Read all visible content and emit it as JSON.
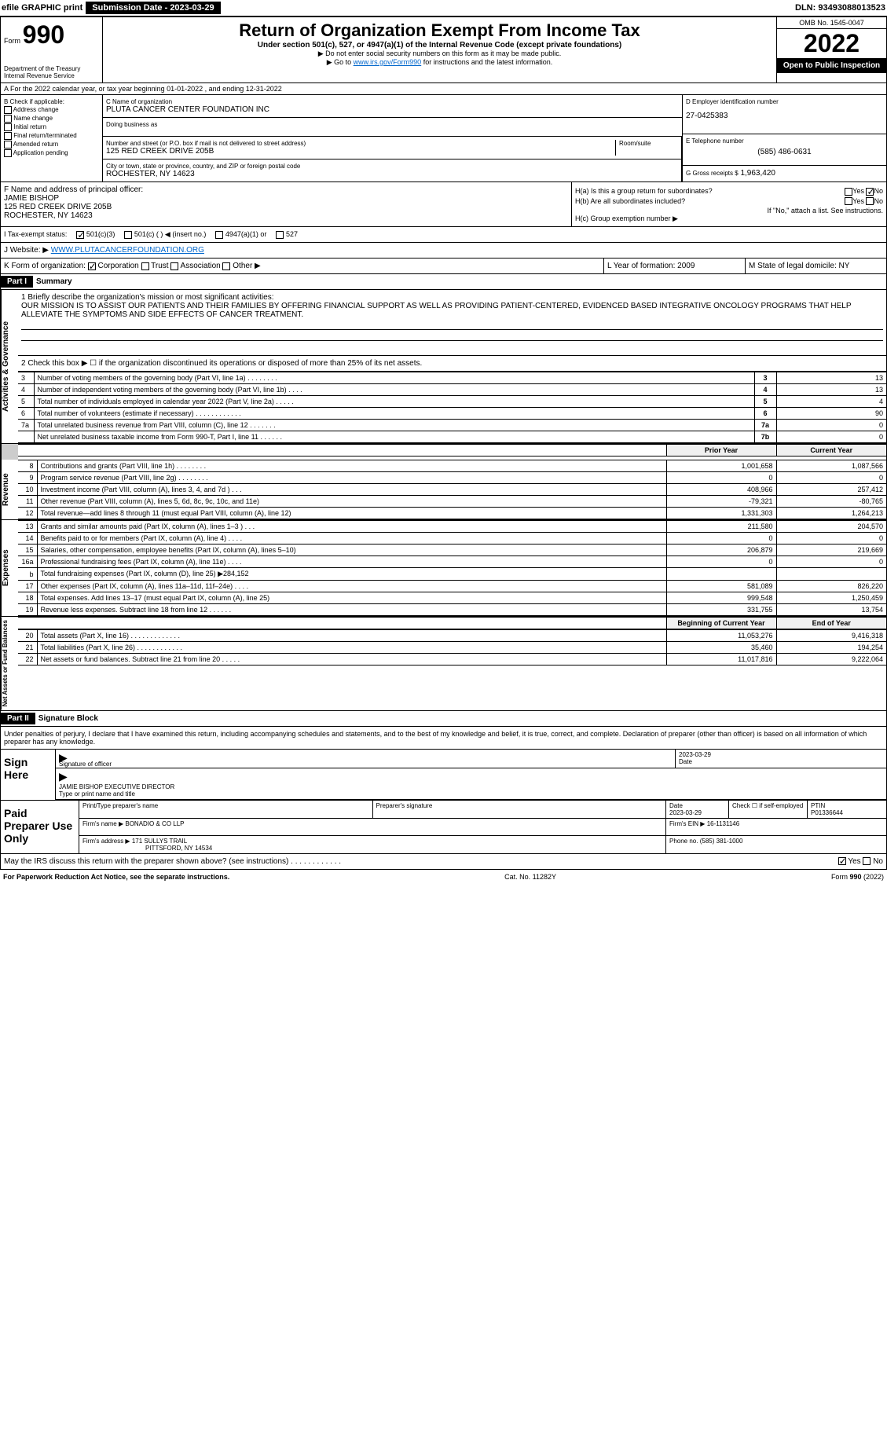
{
  "topbar": {
    "efile": "efile GRAPHIC print",
    "submission_label": "Submission Date - 2023-03-29",
    "dln": "DLN: 93493088013523"
  },
  "header": {
    "form_prefix": "Form",
    "form_number": "990",
    "dept": "Department of the Treasury",
    "irs": "Internal Revenue Service",
    "title": "Return of Organization Exempt From Income Tax",
    "subtitle": "Under section 501(c), 527, or 4947(a)(1) of the Internal Revenue Code (except private foundations)",
    "ssn_note": "▶ Do not enter social security numbers on this form as it may be made public.",
    "goto": "▶ Go to ",
    "goto_link": "www.irs.gov/Form990",
    "goto_suffix": " for instructions and the latest information.",
    "omb": "OMB No. 1545-0047",
    "year": "2022",
    "public": "Open to Public Inspection"
  },
  "rowA": "A For the 2022 calendar year, or tax year beginning 01-01-2022    , and ending 12-31-2022",
  "checkB": {
    "label": "B Check if applicable:",
    "opts": [
      "Address change",
      "Name change",
      "Initial return",
      "Final return/terminated",
      "Amended return",
      "Application pending"
    ]
  },
  "orgC": {
    "name_label": "C Name of organization",
    "name": "PLUTA CANCER CENTER FOUNDATION INC",
    "dba_label": "Doing business as",
    "street_label": "Number and street (or P.O. box if mail is not delivered to street address)",
    "street": "125 RED CREEK DRIVE 205B",
    "room_label": "Room/suite",
    "city_label": "City or town, state or province, country, and ZIP or foreign postal code",
    "city": "ROCHESTER, NY  14623"
  },
  "colD": {
    "ein_label": "D Employer identification number",
    "ein": "27-0425383",
    "phone_label": "E Telephone number",
    "phone": "(585) 486-0631",
    "gross_label": "G Gross receipts $",
    "gross": "1,963,420"
  },
  "colF": {
    "label": "F  Name and address of principal officer:",
    "name": "JAMIE BISHOP",
    "addr1": "125 RED CREEK DRIVE 205B",
    "addr2": "ROCHESTER, NY  14623"
  },
  "colH": {
    "ha": "H(a)  Is this a group return for subordinates?",
    "ha_yes": "Yes",
    "ha_no": "No",
    "hb": "H(b)  Are all subordinates included?",
    "hb_note": "If \"No,\" attach a list. See instructions.",
    "hc": "H(c)  Group exemption number ▶"
  },
  "taxI": {
    "label": "I  Tax-exempt status:",
    "opt1": "501(c)(3)",
    "opt2": "501(c) (   ) ◀ (insert no.)",
    "opt3": "4947(a)(1) or",
    "opt4": "527"
  },
  "webJ": {
    "label": "J Website: ▶",
    "url": "WWW.PLUTACANCERFOUNDATION.ORG"
  },
  "rowK": {
    "label": "K Form of organization:",
    "opts": [
      "Corporation",
      "Trust",
      "Association",
      "Other ▶"
    ],
    "L": "L Year of formation: 2009",
    "M": "M State of legal domicile: NY"
  },
  "part1": {
    "header": "Part I",
    "title": "Summary",
    "mission_label": "1 Briefly describe the organization's mission or most significant activities:",
    "mission": "OUR MISSION IS TO ASSIST OUR PATIENTS AND THEIR FAMILIES BY OFFERING FINANCIAL SUPPORT AS WELL AS PROVIDING PATIENT-CENTERED, EVIDENCED BASED INTEGRATIVE ONCOLOGY PROGRAMS THAT HELP ALLEVIATE THE SYMPTOMS AND SIDE EFFECTS OF CANCER TREATMENT.",
    "line2": "2  Check this box ▶ ☐  if the organization discontinued its operations or disposed of more than 25% of its net assets.",
    "sides": {
      "gov": "Activities & Governance",
      "rev": "Revenue",
      "exp": "Expenses",
      "net": "Net Assets or Fund Balances"
    },
    "gov_rows": [
      {
        "n": "3",
        "label": "Number of voting members of the governing body (Part VI, line 1a)  .    .    .    .    .    .    .    .",
        "box": "3",
        "val": "13"
      },
      {
        "n": "4",
        "label": "Number of independent voting members of the governing body (Part VI, line 1b)  .    .    .    .",
        "box": "4",
        "val": "13"
      },
      {
        "n": "5",
        "label": "Total number of individuals employed in calendar year 2022 (Part V, line 2a)  .    .    .    .    .",
        "box": "5",
        "val": "4"
      },
      {
        "n": "6",
        "label": "Total number of volunteers (estimate if necessary)   .    .    .    .    .    .    .    .    .    .    .    .",
        "box": "6",
        "val": "90"
      },
      {
        "n": "7a",
        "label": "Total unrelated business revenue from Part VIII, column (C), line 12  .    .    .    .    .    .    .",
        "box": "7a",
        "val": "0"
      },
      {
        "n": "",
        "label": "Net unrelated business taxable income from Form 990-T, Part I, line 11   .    .    .    .    .    .",
        "box": "7b",
        "val": "0"
      }
    ],
    "year_headers": {
      "prior": "Prior Year",
      "current": "Current Year"
    },
    "rev_rows": [
      {
        "n": "8",
        "label": "Contributions and grants (Part VIII, line 1h)   .    .    .    .    .    .    .    .",
        "prior": "1,001,658",
        "current": "1,087,566"
      },
      {
        "n": "9",
        "label": "Program service revenue (Part VIII, line 2g)   .    .    .    .    .    .    .    .",
        "prior": "0",
        "current": "0"
      },
      {
        "n": "10",
        "label": "Investment income (Part VIII, column (A), lines 3, 4, and 7d )   .    .    .",
        "prior": "408,966",
        "current": "257,412"
      },
      {
        "n": "11",
        "label": "Other revenue (Part VIII, column (A), lines 5, 6d, 8c, 9c, 10c, and 11e)",
        "prior": "-79,321",
        "current": "-80,765"
      },
      {
        "n": "12",
        "label": "Total revenue—add lines 8 through 11 (must equal Part VIII, column (A), line 12)",
        "prior": "1,331,303",
        "current": "1,264,213"
      }
    ],
    "exp_rows": [
      {
        "n": "13",
        "label": "Grants and similar amounts paid (Part IX, column (A), lines 1–3 )  .    .    .",
        "prior": "211,580",
        "current": "204,570"
      },
      {
        "n": "14",
        "label": "Benefits paid to or for members (Part IX, column (A), line 4)  .    .    .    .",
        "prior": "0",
        "current": "0"
      },
      {
        "n": "15",
        "label": "Salaries, other compensation, employee benefits (Part IX, column (A), lines 5–10)",
        "prior": "206,879",
        "current": "219,669"
      },
      {
        "n": "16a",
        "label": "Professional fundraising fees (Part IX, column (A), line 11e)  .    .    .    .",
        "prior": "0",
        "current": "0"
      },
      {
        "n": "b",
        "label": "Total fundraising expenses (Part IX, column (D), line 25) ▶284,152",
        "prior": "",
        "current": "",
        "shaded": true
      },
      {
        "n": "17",
        "label": "Other expenses (Part IX, column (A), lines 11a–11d, 11f–24e)  .    .    .    .",
        "prior": "581,089",
        "current": "826,220"
      },
      {
        "n": "18",
        "label": "Total expenses. Add lines 13–17 (must equal Part IX, column (A), line 25)",
        "prior": "999,548",
        "current": "1,250,459"
      },
      {
        "n": "19",
        "label": "Revenue less expenses. Subtract line 18 from line 12  .    .    .    .    .    .",
        "prior": "331,755",
        "current": "13,754"
      }
    ],
    "net_headers": {
      "begin": "Beginning of Current Year",
      "end": "End of Year"
    },
    "net_rows": [
      {
        "n": "20",
        "label": "Total assets (Part X, line 16)  .    .    .    .    .    .    .    .    .    .    .    .    .",
        "prior": "11,053,276",
        "current": "9,416,318"
      },
      {
        "n": "21",
        "label": "Total liabilities (Part X, line 26)  .    .    .    .    .    .    .    .    .    .    .    .",
        "prior": "35,460",
        "current": "194,254"
      },
      {
        "n": "22",
        "label": "Net assets or fund balances. Subtract line 21 from line 20  .    .    .    .    .",
        "prior": "11,017,816",
        "current": "9,222,064"
      }
    ]
  },
  "part2": {
    "header": "Part II",
    "title": "Signature Block",
    "declaration": "Under penalties of perjury, I declare that I have examined this return, including accompanying schedules and statements, and to the best of my knowledge and belief, it is true, correct, and complete. Declaration of preparer (other than officer) is based on all information of which preparer has any knowledge.",
    "sign_here": "Sign Here",
    "sig_officer": "Signature of officer",
    "sig_date": "2023-03-29",
    "date_label": "Date",
    "officer_name": "JAMIE BISHOP EXECUTIVE DIRECTOR",
    "type_name": "Type or print name and title",
    "paid_prep": "Paid Preparer Use Only",
    "prep_name_label": "Print/Type preparer's name",
    "prep_sig_label": "Preparer's signature",
    "prep_date_label": "Date",
    "prep_date": "2023-03-29",
    "check_self": "Check ☐ if self-employed",
    "ptin_label": "PTIN",
    "ptin": "P01336644",
    "firm_name_label": "Firm's name    ▶",
    "firm_name": "BONADIO & CO LLP",
    "firm_ein_label": "Firm's EIN ▶",
    "firm_ein": "16-1131146",
    "firm_addr_label": "Firm's address ▶",
    "firm_addr1": "171 SULLYS TRAIL",
    "firm_addr2": "PITTSFORD, NY  14534",
    "firm_phone_label": "Phone no.",
    "firm_phone": "(585) 381-1000",
    "discuss": "May the IRS discuss this return with the preparer shown above? (see instructions)   .    .    .    .    .    .    .    .    .    .    .    .",
    "discuss_yes": "Yes",
    "discuss_no": "No"
  },
  "footer": {
    "paperwork": "For Paperwork Reduction Act Notice, see the separate instructions.",
    "cat": "Cat. No. 11282Y",
    "form": "Form 990 (2022)"
  }
}
